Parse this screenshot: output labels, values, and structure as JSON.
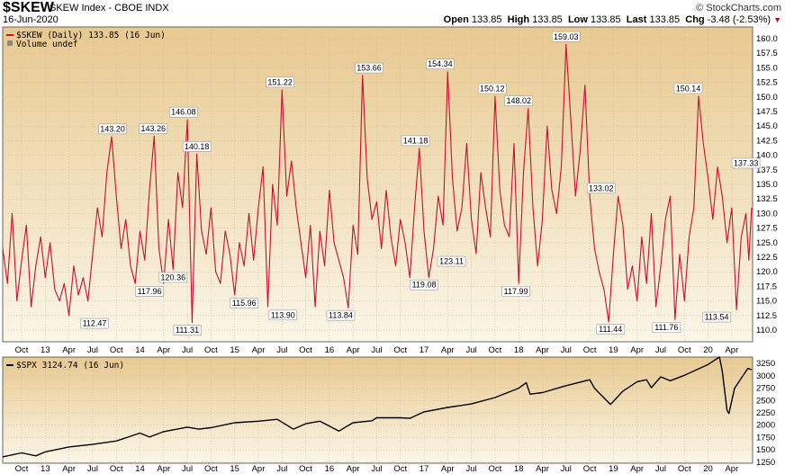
{
  "header": {
    "symbol": "$SKEW",
    "subtitle": "SKEW Index - CBOE  INDX",
    "date": "16-Jun-2020",
    "logo": "© StockCharts.com",
    "open_label": "Open",
    "open": "133.85",
    "high_label": "High",
    "high": "133.85",
    "low_label": "Low",
    "low": "133.85",
    "last_label": "Last",
    "last": "133.85",
    "chg_label": "Chg",
    "chg": "-3.48 (-2.53%)"
  },
  "colors": {
    "skew_line": "#c8102e",
    "spx_line": "#000000",
    "bg_top": "#e8c990",
    "bg_bottom": "#fbf6e8",
    "border": "#666666"
  },
  "chart_data": [
    {
      "type": "line",
      "legend": "$SKEW (Daily) 133.85 (16 Jun)",
      "legend2": "Volume undef",
      "ylim": [
        108,
        162
      ],
      "y_ticks": [
        110,
        112.5,
        115,
        117.5,
        120,
        122.5,
        125,
        127.5,
        130,
        132.5,
        135,
        137.5,
        140,
        142.5,
        145,
        147.5,
        150,
        152.5,
        155,
        157.5,
        160
      ],
      "y_tick_labels": [
        "110.0",
        "112.5",
        "115.0",
        "117.5",
        "120.0",
        "122.5",
        "125.0",
        "127.5",
        "130.0",
        "132.5",
        "135.0",
        "137.5",
        "140.0",
        "142.5",
        "145.0",
        "147.5",
        "150.0",
        "152.5",
        "155.0",
        "157.5",
        "160.0"
      ],
      "x_ticks": [
        "Oct",
        "13",
        "Apr",
        "Jul",
        "Oct",
        "14",
        "Apr",
        "Jul",
        "Oct",
        "15",
        "Apr",
        "Jul",
        "Oct",
        "16",
        "Apr",
        "Jul",
        "Oct",
        "17",
        "Apr",
        "Jul",
        "Oct",
        "18",
        "Apr",
        "Jul",
        "Oct",
        "19",
        "Apr",
        "Jul",
        "Oct",
        "20",
        "Apr"
      ],
      "x_tick_t": [
        2012.75,
        2013.0,
        2013.25,
        2013.5,
        2013.75,
        2014.0,
        2014.25,
        2014.5,
        2014.75,
        2015.0,
        2015.25,
        2015.5,
        2015.75,
        2016.0,
        2016.25,
        2016.5,
        2016.75,
        2017.0,
        2017.25,
        2017.5,
        2017.75,
        2018.0,
        2018.25,
        2018.5,
        2018.75,
        2019.0,
        2019.25,
        2019.5,
        2019.75,
        2020.0,
        2020.25
      ],
      "xlim": [
        2012.55,
        2020.47
      ],
      "series": [
        {
          "t": [
            2012.55,
            2012.6,
            2012.65,
            2012.7,
            2012.75,
            2012.8,
            2012.85,
            2012.9,
            2012.95,
            2013.0,
            2013.05,
            2013.1,
            2013.15,
            2013.2,
            2013.25,
            2013.3,
            2013.35,
            2013.4,
            2013.45,
            2013.5,
            2013.55,
            2013.6,
            2013.65,
            2013.7,
            2013.75,
            2013.8,
            2013.85,
            2013.9,
            2013.95,
            2014.0,
            2014.05,
            2014.1,
            2014.15,
            2014.2,
            2014.25,
            2014.3,
            2014.35,
            2014.4,
            2014.45,
            2014.5,
            2014.55,
            2014.6,
            2014.65,
            2014.7,
            2014.75,
            2014.8,
            2014.85,
            2014.9,
            2014.95,
            2015.0,
            2015.05,
            2015.1,
            2015.15,
            2015.2,
            2015.25,
            2015.3,
            2015.35,
            2015.4,
            2015.45,
            2015.5,
            2015.55,
            2015.6,
            2015.65,
            2015.7,
            2015.75,
            2015.8,
            2015.85,
            2015.9,
            2015.95,
            2016.0,
            2016.05,
            2016.1,
            2016.15,
            2016.2,
            2016.25,
            2016.3,
            2016.35,
            2016.4,
            2016.45,
            2016.5,
            2016.55,
            2016.6,
            2016.65,
            2016.7,
            2016.75,
            2016.8,
            2016.85,
            2016.9,
            2016.95,
            2017.0,
            2017.05,
            2017.1,
            2017.15,
            2017.2,
            2017.25,
            2017.3,
            2017.35,
            2017.4,
            2017.45,
            2017.5,
            2017.55,
            2017.6,
            2017.65,
            2017.7,
            2017.75,
            2017.8,
            2017.85,
            2017.9,
            2017.95,
            2018.0,
            2018.05,
            2018.1,
            2018.15,
            2018.2,
            2018.25,
            2018.3,
            2018.35,
            2018.4,
            2018.45,
            2018.5,
            2018.55,
            2018.6,
            2018.65,
            2018.7,
            2018.75,
            2018.8,
            2018.85,
            2018.9,
            2018.95,
            2019.0,
            2019.05,
            2019.1,
            2019.15,
            2019.2,
            2019.25,
            2019.3,
            2019.35,
            2019.4,
            2019.45,
            2019.5,
            2019.55,
            2019.6,
            2019.65,
            2019.7,
            2019.75,
            2019.8,
            2019.85,
            2019.9,
            2019.95,
            2020.0,
            2020.05,
            2020.1,
            2020.15,
            2020.2,
            2020.25,
            2020.3,
            2020.35,
            2020.4,
            2020.43,
            2020.46
          ],
          "v": [
            124,
            118,
            130,
            115,
            122,
            128,
            114,
            121,
            126,
            119,
            125,
            117,
            115,
            118,
            112.5,
            121,
            116,
            119,
            115,
            123,
            131,
            126,
            137,
            143.2,
            133,
            124,
            129,
            121,
            118,
            127,
            122,
            134,
            143.3,
            124,
            118,
            129,
            120.4,
            137,
            131,
            146.1,
            111.3,
            140.2,
            127,
            123,
            131,
            120,
            118,
            127,
            123,
            116,
            125,
            121,
            130,
            122,
            131,
            138,
            114,
            135,
            128,
            151.2,
            133,
            139,
            131,
            125,
            119,
            128,
            114,
            127,
            121,
            134,
            125,
            122,
            119,
            113.8,
            128,
            123,
            153.7,
            136,
            129,
            132,
            124,
            134,
            126,
            121,
            129,
            125,
            119,
            131,
            141.2,
            127,
            119,
            124,
            133,
            128,
            154.3,
            136,
            127,
            131,
            142,
            129,
            123.1,
            137,
            131,
            126,
            150.1,
            134,
            128,
            126,
            142,
            118,
            137,
            148,
            131,
            121,
            129,
            145,
            134,
            130,
            138,
            159,
            146,
            133,
            141,
            152,
            133,
            124,
            120,
            117,
            111.4,
            123,
            133,
            128,
            117,
            121,
            115,
            126,
            118,
            130,
            114,
            121,
            129,
            133,
            111.8,
            123,
            115,
            126,
            131,
            150.1,
            142,
            136,
            129,
            138,
            133,
            125,
            131,
            113.5,
            126,
            130,
            122,
            131,
            137.3,
            133.85
          ],
          "annotations": [
            {
              "t": 2013.52,
              "v": 112.47,
              "label": "112.47",
              "pos": "below"
            },
            {
              "t": 2013.71,
              "v": 143.2,
              "label": "143.20",
              "pos": "above"
            },
            {
              "t": 2014.1,
              "v": 117.96,
              "label": "117.96",
              "pos": "below"
            },
            {
              "t": 2014.14,
              "v": 143.26,
              "label": "143.26",
              "pos": "above"
            },
            {
              "t": 2014.35,
              "v": 120.36,
              "label": "120.36",
              "pos": "below"
            },
            {
              "t": 2014.46,
              "v": 146.08,
              "label": "146.08",
              "pos": "above"
            },
            {
              "t": 2014.5,
              "v": 111.31,
              "label": "111.31",
              "pos": "below"
            },
            {
              "t": 2014.6,
              "v": 140.18,
              "label": "140.18",
              "pos": "above"
            },
            {
              "t": 2015.1,
              "v": 115.96,
              "label": "115.96",
              "pos": "below"
            },
            {
              "t": 2015.48,
              "v": 151.22,
              "label": "151.22",
              "pos": "above"
            },
            {
              "t": 2015.51,
              "v": 113.9,
              "label": "113.90",
              "pos": "below"
            },
            {
              "t": 2016.12,
              "v": 113.84,
              "label": "113.84",
              "pos": "below"
            },
            {
              "t": 2016.42,
              "v": 153.66,
              "label": "153.66",
              "pos": "above"
            },
            {
              "t": 2016.91,
              "v": 141.18,
              "label": "141.18",
              "pos": "above"
            },
            {
              "t": 2017.0,
              "v": 119.08,
              "label": "119.08",
              "pos": "below"
            },
            {
              "t": 2017.17,
              "v": 154.34,
              "label": "154.34",
              "pos": "above"
            },
            {
              "t": 2017.29,
              "v": 123.11,
              "label": "123.11",
              "pos": "below"
            },
            {
              "t": 2017.72,
              "v": 150.12,
              "label": "150.12",
              "pos": "above"
            },
            {
              "t": 2017.97,
              "v": 117.99,
              "label": "117.99",
              "pos": "below"
            },
            {
              "t": 2018.0,
              "v": 148.02,
              "label": "148.02",
              "pos": "above"
            },
            {
              "t": 2018.5,
              "v": 159.03,
              "label": "159.03",
              "pos": "above"
            },
            {
              "t": 2018.87,
              "v": 133.02,
              "label": "133.02",
              "pos": "above"
            },
            {
              "t": 2018.97,
              "v": 111.44,
              "label": "111.44",
              "pos": "below"
            },
            {
              "t": 2019.56,
              "v": 111.76,
              "label": "111.76",
              "pos": "below"
            },
            {
              "t": 2019.79,
              "v": 150.14,
              "label": "150.14",
              "pos": "above"
            },
            {
              "t": 2020.09,
              "v": 113.54,
              "label": "113.54",
              "pos": "below"
            },
            {
              "t": 2020.4,
              "v": 137.33,
              "label": "137.33",
              "pos": "above"
            }
          ]
        }
      ]
    },
    {
      "type": "line",
      "legend": "$SPX 3124.74 (16 Jun)",
      "ylim": [
        1230,
        3380
      ],
      "y_ticks": [
        1250,
        1500,
        1750,
        2000,
        2250,
        2500,
        2750,
        3000,
        3250
      ],
      "y_tick_labels": [
        "1250",
        "1500",
        "1750",
        "2000",
        "2250",
        "2500",
        "2750",
        "3000",
        "3250"
      ],
      "x_ticks": [
        "Oct",
        "13",
        "Apr",
        "Jul",
        "Oct",
        "14",
        "Apr",
        "Jul",
        "Oct",
        "15",
        "Apr",
        "Jul",
        "Oct",
        "16",
        "Apr",
        "Jul",
        "Oct",
        "17",
        "Apr",
        "Jul",
        "Oct",
        "18",
        "Apr",
        "Jul",
        "Oct",
        "19",
        "Apr",
        "Jul",
        "Oct",
        "20",
        "Apr"
      ],
      "xlim": [
        2012.55,
        2020.47
      ],
      "series": [
        {
          "t": [
            2012.55,
            2012.75,
            2012.9,
            2013.0,
            2013.25,
            2013.5,
            2013.75,
            2014.0,
            2014.1,
            2014.25,
            2014.5,
            2014.62,
            2014.75,
            2015.0,
            2015.25,
            2015.45,
            2015.62,
            2015.75,
            2015.9,
            2016.1,
            2016.25,
            2016.45,
            2016.5,
            2016.75,
            2016.85,
            2017.0,
            2017.25,
            2017.5,
            2017.75,
            2018.0,
            2018.08,
            2018.12,
            2018.25,
            2018.5,
            2018.75,
            2018.8,
            2018.97,
            2019.1,
            2019.25,
            2019.35,
            2019.4,
            2019.5,
            2019.6,
            2019.75,
            2020.0,
            2020.12,
            2020.15,
            2020.2,
            2020.22,
            2020.28,
            2020.35,
            2020.42,
            2020.46
          ],
          "v": [
            1360,
            1440,
            1380,
            1460,
            1560,
            1610,
            1680,
            1840,
            1760,
            1870,
            1960,
            1920,
            1950,
            2050,
            2080,
            2120,
            1920,
            2030,
            2080,
            1880,
            2050,
            2090,
            2150,
            2150,
            2140,
            2270,
            2360,
            2430,
            2560,
            2750,
            2860,
            2630,
            2660,
            2800,
            2920,
            2750,
            2420,
            2690,
            2880,
            2920,
            2760,
            2980,
            2900,
            3010,
            3230,
            3380,
            3100,
            2300,
            2237,
            2750,
            2950,
            3150,
            3125
          ]
        }
      ]
    }
  ]
}
